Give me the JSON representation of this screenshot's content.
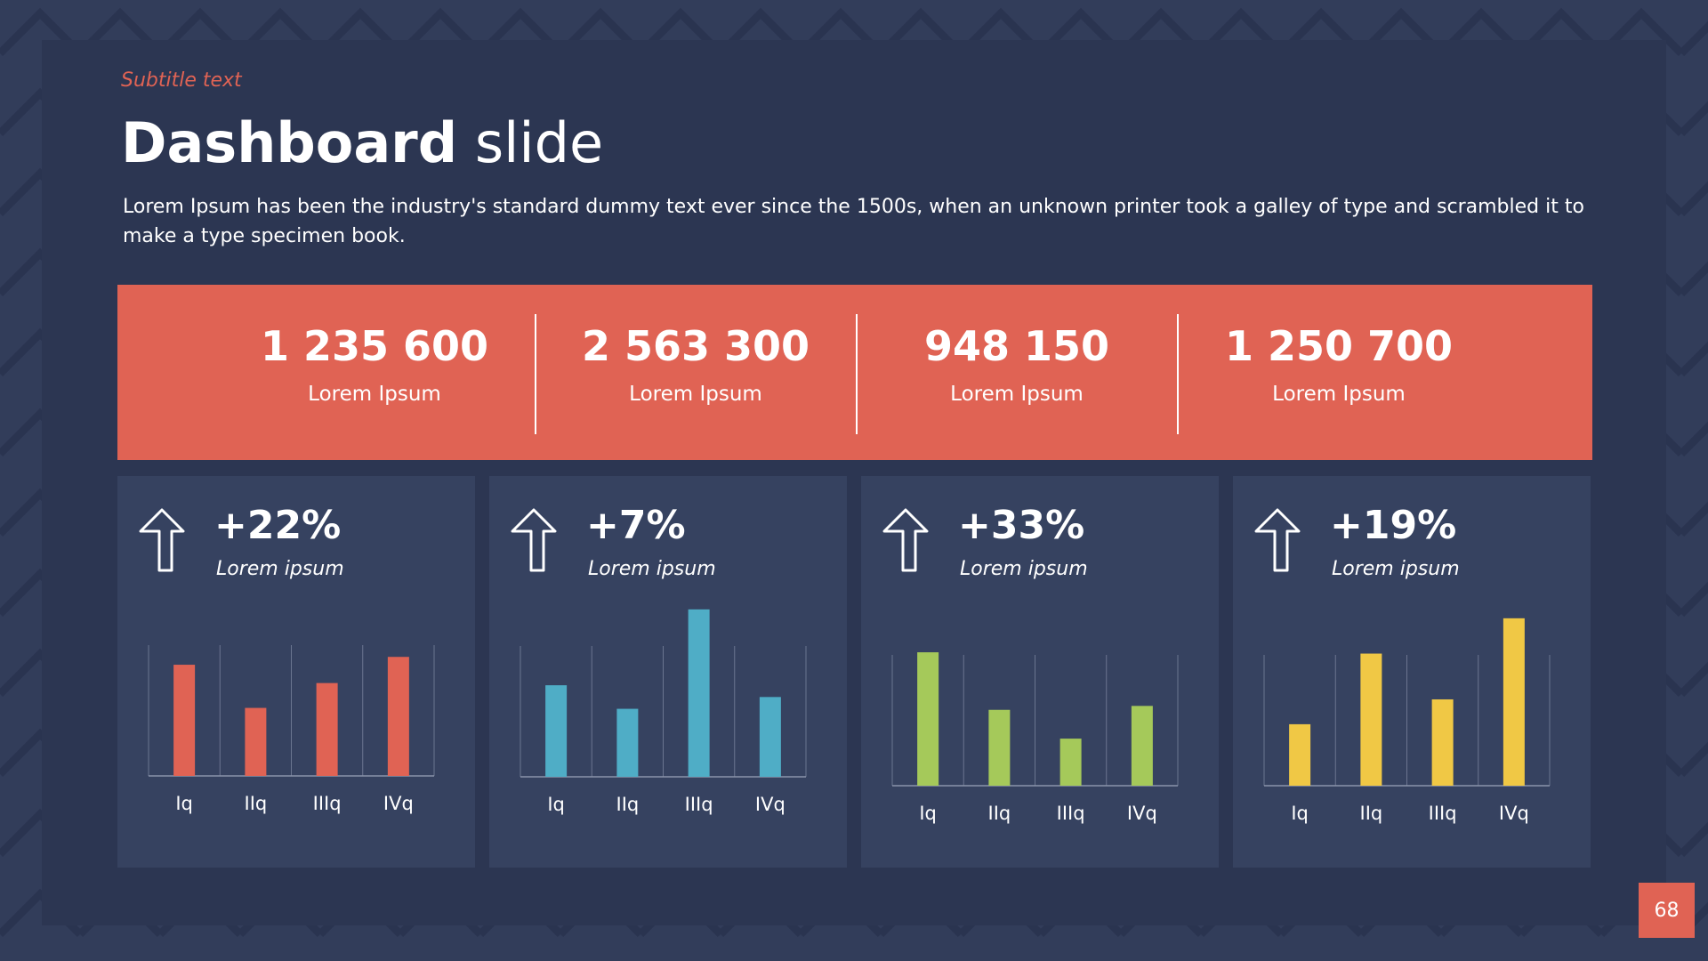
{
  "header": {
    "subtitle": "Subtitle text",
    "title_bold": "Dashboard",
    "title_light": "slide",
    "description": "Lorem Ipsum has been the industry's standard dummy text ever since the 1500s, when an unknown printer took a galley of type and scrambled it to make a type specimen book."
  },
  "stats": [
    {
      "value": "1 235 600",
      "label": "Lorem Ipsum"
    },
    {
      "value": "2 563 300",
      "label": "Lorem Ipsum"
    },
    {
      "value": "948 150",
      "label": "Lorem Ipsum"
    },
    {
      "value": "1 250 700",
      "label": "Lorem Ipsum"
    }
  ],
  "kpis": [
    {
      "change": "+22%",
      "label": "Lorem ipsum",
      "chart_data": {
        "type": "bar",
        "categories": [
          "Iq",
          "IIq",
          "IIIq",
          "IVq"
        ],
        "values": [
          85,
          52,
          71,
          91
        ],
        "color": "#e06354"
      }
    },
    {
      "change": "+7%",
      "label": "Lorem ipsum",
      "chart_data": {
        "type": "bar",
        "categories": [
          "Iq",
          "IIq",
          "IIIq",
          "IVq"
        ],
        "values": [
          70,
          52,
          128,
          61
        ],
        "color": "#4fadc6"
      }
    },
    {
      "change": "+33%",
      "label": "Lorem ipsum",
      "chart_data": {
        "type": "bar",
        "categories": [
          "Iq",
          "IIq",
          "IIIq",
          "IVq"
        ],
        "values": [
          102,
          58,
          36,
          61
        ],
        "color": "#a5c95a"
      }
    },
    {
      "change": "+19%",
      "label": "Lorem ipsum",
      "chart_data": {
        "type": "bar",
        "categories": [
          "Iq",
          "IIq",
          "IIIq",
          "IVq"
        ],
        "values": [
          47,
          101,
          66,
          128
        ],
        "color": "#f0c845"
      }
    }
  ],
  "page_number": "68"
}
